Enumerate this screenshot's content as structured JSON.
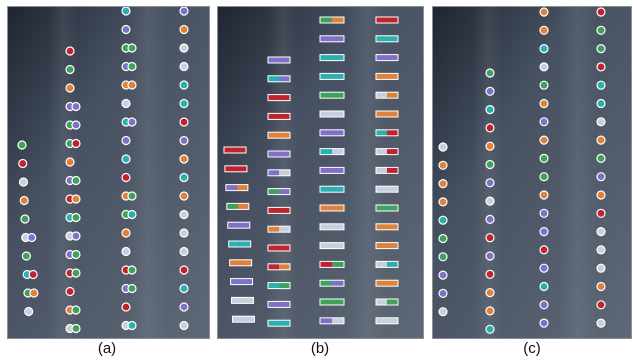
{
  "captions": {
    "a": "(a)",
    "b": "(b)",
    "c": "(c)"
  },
  "colors": {
    "bg_dark": "#2c3440",
    "bg_mid": "#4a5563",
    "bg_light": "#6a7482",
    "outline": "#ffffff",
    "cat": [
      "#c7d0dc",
      "#e0823a",
      "#3fa25c",
      "#c0222e",
      "#2ab0b0",
      "#8070c8"
    ]
  }
}
